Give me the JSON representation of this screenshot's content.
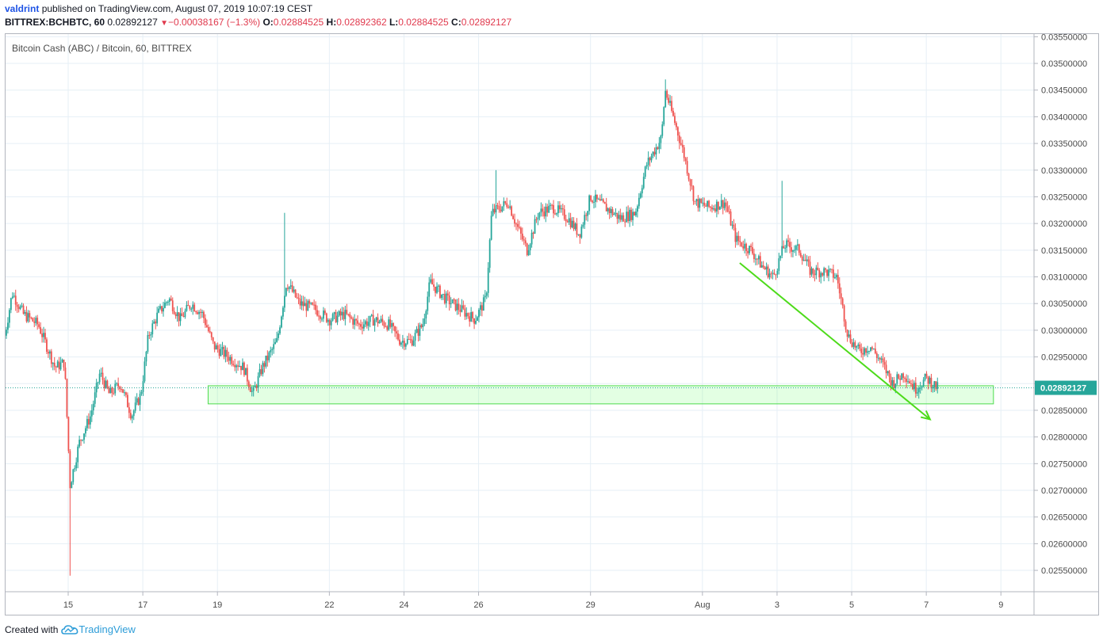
{
  "header": {
    "author": "valdrint",
    "published": "published on TradingView.com, August 07, 2019 10:07:19 CEST",
    "symbol": "BITTREX:BCHBTC, 60",
    "last": "0.02892127",
    "change": "−0.00038167 (−1.3%)",
    "o_label": "O:",
    "o": "0.02884525",
    "h_label": "H:",
    "h": "0.02892362",
    "l_label": "L:",
    "l": "0.02884525",
    "c_label": "C:",
    "c": "0.02892127"
  },
  "footer": {
    "created_with": "Created with",
    "brand": "TradingView"
  },
  "colors": {
    "up": "#26a69a",
    "down": "#ef5350",
    "grid": "#e6eff6",
    "axis_border": "#b2b5be",
    "price_label_bg": "#26a69a",
    "zone_fill": "rgba(102,255,102,0.18)",
    "zone_stroke": "#4ddb4d",
    "arrow": "#4ddb1a",
    "price_line": "#26a69a"
  },
  "chart_data": {
    "type": "candlestick",
    "title": "Bitcoin Cash (ABC) / Bitcoin, 60, BITTREX",
    "interval": "60",
    "ylim": [
      0.0251,
      0.03555
    ],
    "y_ticks": [
      "0.03550000",
      "0.03500000",
      "0.03450000",
      "0.03400000",
      "0.03350000",
      "0.03300000",
      "0.03250000",
      "0.03200000",
      "0.03150000",
      "0.03100000",
      "0.03050000",
      "0.03000000",
      "0.02950000",
      "0.02900000",
      "0.02850000",
      "0.02800000",
      "0.02750000",
      "0.02700000",
      "0.02650000",
      "0.02600000",
      "0.02550000"
    ],
    "x_ticks": [
      {
        "label": "15",
        "day": 0
      },
      {
        "label": "17",
        "day": 2
      },
      {
        "label": "19",
        "day": 4
      },
      {
        "label": "22",
        "day": 7
      },
      {
        "label": "24",
        "day": 9
      },
      {
        "label": "26",
        "day": 11
      },
      {
        "label": "29",
        "day": 14
      },
      {
        "label": "Aug",
        "day": 17
      },
      {
        "label": "3",
        "day": 19
      },
      {
        "label": "5",
        "day": 21
      },
      {
        "label": "7",
        "day": 23
      },
      {
        "label": "9",
        "day": 25
      }
    ],
    "last_price": 0.02892127,
    "last_price_label": "0.02892127",
    "price_path": [
      [
        -1.7,
        0.0299
      ],
      [
        -1.5,
        0.0307
      ],
      [
        -1.2,
        0.0303
      ],
      [
        -0.8,
        0.0301
      ],
      [
        -0.35,
        0.0293
      ],
      [
        -0.1,
        0.0294
      ],
      [
        0.05,
        0.0271
      ],
      [
        0.3,
        0.0279
      ],
      [
        0.6,
        0.0284
      ],
      [
        0.85,
        0.0292
      ],
      [
        1.1,
        0.0288
      ],
      [
        1.4,
        0.029
      ],
      [
        1.7,
        0.0284
      ],
      [
        1.95,
        0.0288
      ],
      [
        2.15,
        0.0299
      ],
      [
        2.4,
        0.0303
      ],
      [
        2.7,
        0.0306
      ],
      [
        3.0,
        0.0302
      ],
      [
        3.3,
        0.0305
      ],
      [
        3.6,
        0.0303
      ],
      [
        3.9,
        0.0297
      ],
      [
        4.3,
        0.0295
      ],
      [
        4.7,
        0.0293
      ],
      [
        4.95,
        0.0288
      ],
      [
        5.2,
        0.0293
      ],
      [
        5.6,
        0.0298
      ],
      [
        5.85,
        0.0309
      ],
      [
        6.2,
        0.0305
      ],
      [
        6.6,
        0.0304
      ],
      [
        7.0,
        0.0302
      ],
      [
        7.4,
        0.0303
      ],
      [
        7.8,
        0.0301
      ],
      [
        8.2,
        0.0302
      ],
      [
        8.6,
        0.0301
      ],
      [
        8.9,
        0.0298
      ],
      [
        9.2,
        0.0298
      ],
      [
        9.5,
        0.0301
      ],
      [
        9.7,
        0.0309
      ],
      [
        10.1,
        0.0306
      ],
      [
        10.5,
        0.0304
      ],
      [
        10.9,
        0.0302
      ],
      [
        11.2,
        0.0306
      ],
      [
        11.35,
        0.0322
      ],
      [
        11.8,
        0.0324
      ],
      [
        12.0,
        0.032
      ],
      [
        12.3,
        0.0315
      ],
      [
        12.6,
        0.0322
      ],
      [
        13.0,
        0.0323
      ],
      [
        13.4,
        0.0321
      ],
      [
        13.7,
        0.0318
      ],
      [
        14.0,
        0.0325
      ],
      [
        14.4,
        0.0323
      ],
      [
        14.8,
        0.0321
      ],
      [
        15.2,
        0.0322
      ],
      [
        15.5,
        0.0331
      ],
      [
        15.9,
        0.0336
      ],
      [
        16.0,
        0.0345
      ],
      [
        16.3,
        0.0338
      ],
      [
        16.5,
        0.0333
      ],
      [
        16.8,
        0.0324
      ],
      [
        17.2,
        0.0323
      ],
      [
        17.6,
        0.0324
      ],
      [
        17.9,
        0.0317
      ],
      [
        18.3,
        0.0315
      ],
      [
        18.6,
        0.0312
      ],
      [
        18.9,
        0.031
      ],
      [
        19.2,
        0.0316
      ],
      [
        19.6,
        0.0315
      ],
      [
        19.9,
        0.0311
      ],
      [
        20.3,
        0.0311
      ],
      [
        20.6,
        0.031
      ],
      [
        20.9,
        0.0299
      ],
      [
        21.2,
        0.0296
      ],
      [
        21.5,
        0.0297
      ],
      [
        21.8,
        0.0294
      ],
      [
        22.1,
        0.029
      ],
      [
        22.4,
        0.0292
      ],
      [
        22.7,
        0.0289
      ],
      [
        23.0,
        0.0291
      ],
      [
        23.3,
        0.02892
      ]
    ],
    "wick_extremes": [
      {
        "day": 0.05,
        "low": 0.0254
      },
      {
        "day": 5.8,
        "high": 0.0322
      },
      {
        "day": 11.45,
        "high": 0.033
      },
      {
        "day": 16.0,
        "high": 0.0347
      },
      {
        "day": 19.15,
        "high": 0.0328
      }
    ],
    "annotations": {
      "support_zone": {
        "day_start": 3.75,
        "day_end": 24.8,
        "low": 0.02862,
        "high": 0.02896
      },
      "trend_arrow": {
        "from_day": 18.0,
        "from_price": 0.03126,
        "to_day": 23.1,
        "to_price": 0.02833
      }
    }
  }
}
